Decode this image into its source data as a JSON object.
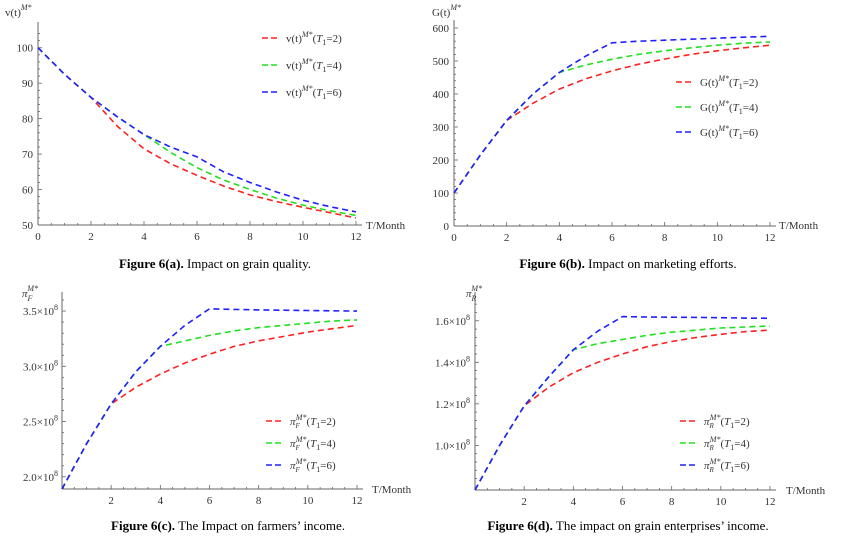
{
  "chart_data": [
    {
      "type": "line",
      "id": "a",
      "caption_bold": "Figure 6(a).",
      "caption_rest": " Impact on grain quality.",
      "ylabel": {
        "base": "v(t)",
        "sub": "",
        "sup": "M*"
      },
      "xlabel": "T/Month",
      "xlim": [
        0,
        12
      ],
      "ylim": [
        50,
        105
      ],
      "xticks": [
        {
          "v": 0,
          "l": "0"
        },
        {
          "v": 2,
          "l": "2"
        },
        {
          "v": 4,
          "l": "4"
        },
        {
          "v": 6,
          "l": "6"
        },
        {
          "v": 8,
          "l": "8"
        },
        {
          "v": 10,
          "l": "10"
        },
        {
          "v": 12,
          "l": "12"
        }
      ],
      "yticks": [
        {
          "v": 50,
          "m": "50",
          "e": ""
        },
        {
          "v": 60,
          "m": "60",
          "e": ""
        },
        {
          "v": 70,
          "m": "70",
          "e": ""
        },
        {
          "v": 80,
          "m": "80",
          "e": ""
        },
        {
          "v": 90,
          "m": "90",
          "e": ""
        },
        {
          "v": 100,
          "m": "100",
          "e": ""
        }
      ],
      "legend_position": "top-right",
      "series": [
        {
          "name": "T1=2",
          "color": "#ff2020",
          "cond": "=2)",
          "x": [
            0,
            1,
            2,
            3,
            4,
            5,
            6,
            7,
            8,
            9,
            10,
            11,
            12
          ],
          "y": [
            100,
            92.5,
            86,
            77.8,
            71.5,
            67.3,
            64,
            61,
            58.5,
            56.6,
            55,
            53.5,
            52
          ]
        },
        {
          "name": "T1=4",
          "color": "#20e020",
          "cond": "=4)",
          "x": [
            0,
            1,
            2,
            3,
            4,
            5,
            6,
            7,
            8,
            9,
            10,
            11,
            12
          ],
          "y": [
            100,
            92.5,
            86,
            80.5,
            75.5,
            70.5,
            66.2,
            62.7,
            60,
            57.6,
            55.6,
            54,
            52.7
          ]
        },
        {
          "name": "T1=6",
          "color": "#2020ff",
          "cond": "=6)",
          "x": [
            0,
            1,
            2,
            3,
            4,
            5,
            6,
            7,
            8,
            9,
            10,
            11,
            12
          ],
          "y": [
            100,
            92.5,
            86,
            80.5,
            75.5,
            72,
            69.2,
            65,
            62,
            59.3,
            57,
            55.2,
            53.7
          ]
        }
      ]
    },
    {
      "type": "line",
      "id": "b",
      "caption_bold": "Figure 6(b).",
      "caption_rest": " Impact on marketing efforts.",
      "ylabel": {
        "base": "G(t)",
        "sub": "",
        "sup": "M*"
      },
      "xlabel": "T/Month",
      "xlim": [
        0,
        12
      ],
      "ylim": [
        0,
        600
      ],
      "xticks": [
        {
          "v": 0,
          "l": "0"
        },
        {
          "v": 2,
          "l": "2"
        },
        {
          "v": 4,
          "l": "4"
        },
        {
          "v": 6,
          "l": "6"
        },
        {
          "v": 8,
          "l": "8"
        },
        {
          "v": 10,
          "l": "10"
        },
        {
          "v": 12,
          "l": "12"
        }
      ],
      "yticks": [
        {
          "v": 0,
          "m": "0",
          "e": ""
        },
        {
          "v": 100,
          "m": "100",
          "e": ""
        },
        {
          "v": 200,
          "m": "200",
          "e": ""
        },
        {
          "v": 300,
          "m": "300",
          "e": ""
        },
        {
          "v": 400,
          "m": "400",
          "e": ""
        },
        {
          "v": 500,
          "m": "500",
          "e": ""
        },
        {
          "v": 600,
          "m": "600",
          "e": ""
        }
      ],
      "legend_position": "right",
      "series": [
        {
          "name": "T1=2",
          "color": "#ff2020",
          "cond": "=2)",
          "x": [
            0,
            1,
            2,
            3,
            4,
            5,
            6,
            7,
            8,
            9,
            10,
            11,
            12
          ],
          "y": [
            100,
            215,
            320,
            372,
            415,
            446,
            470,
            490,
            506,
            520,
            531,
            540,
            548
          ]
        },
        {
          "name": "T1=4",
          "color": "#20e020",
          "cond": "=4)",
          "x": [
            0,
            1,
            2,
            3,
            4,
            5,
            6,
            7,
            8,
            9,
            10,
            11,
            12
          ],
          "y": [
            100,
            215,
            320,
            400,
            465,
            488,
            505,
            520,
            531,
            540,
            548,
            554,
            558
          ]
        },
        {
          "name": "T1=6",
          "color": "#2020ff",
          "cond": "=6)",
          "x": [
            0,
            1,
            2,
            3,
            4,
            5,
            6,
            7,
            8,
            9,
            10,
            11,
            12
          ],
          "y": [
            100,
            215,
            320,
            400,
            465,
            515,
            555,
            560,
            563,
            566,
            569,
            572,
            575
          ]
        }
      ]
    },
    {
      "type": "line",
      "id": "c",
      "caption_bold": "Figure 6(c).",
      "caption_rest": " The Impact on farmers’ income.",
      "ylabel": {
        "base": "π",
        "sub": "F",
        "sup": "M*"
      },
      "xlabel": "T/Month",
      "xlim": [
        0,
        12
      ],
      "ylim": [
        189000000,
        360000000
      ],
      "xticks": [
        {
          "v": 2,
          "l": "2"
        },
        {
          "v": 4,
          "l": "4"
        },
        {
          "v": 6,
          "l": "6"
        },
        {
          "v": 8,
          "l": "8"
        },
        {
          "v": 10,
          "l": "10"
        },
        {
          "v": 12,
          "l": "12"
        }
      ],
      "yticks": [
        {
          "v": 200000000,
          "m": "2.0×10",
          "e": "8"
        },
        {
          "v": 250000000,
          "m": "2.5×10",
          "e": "8"
        },
        {
          "v": 300000000,
          "m": "3.0×10",
          "e": "8"
        },
        {
          "v": 350000000,
          "m": "3.5×10",
          "e": "8"
        }
      ],
      "legend_position": "bottom-right",
      "series": [
        {
          "name": "T1=2",
          "color": "#ff2020",
          "cond": "=2)",
          "x": [
            0,
            1,
            2,
            3,
            4,
            5,
            6,
            7,
            8,
            9,
            10,
            11,
            12
          ],
          "y": [
            189000000,
            230000000,
            266000000,
            281000000,
            293000000,
            303000000,
            311000000,
            318000000,
            323000000,
            327000000,
            331000000,
            334000000,
            337000000
          ]
        },
        {
          "name": "T1=4",
          "color": "#20e020",
          "cond": "=4)",
          "x": [
            0,
            1,
            2,
            3,
            4,
            5,
            6,
            7,
            8,
            9,
            10,
            11,
            12
          ],
          "y": [
            189000000,
            230000000,
            266000000,
            295000000,
            318000000,
            323000000,
            328000000,
            332000000,
            335000000,
            337000000,
            339000000,
            341000000,
            342000000
          ]
        },
        {
          "name": "T1=6",
          "color": "#2020ff",
          "cond": "=6)",
          "x": [
            0,
            1,
            2,
            3,
            4,
            5,
            6,
            7,
            8,
            9,
            10,
            11,
            12
          ],
          "y": [
            189000000,
            230000000,
            266000000,
            295000000,
            318000000,
            337000000,
            352000000,
            351500000,
            351000000,
            350800000,
            350500000,
            350200000,
            350000000
          ]
        }
      ]
    },
    {
      "type": "line",
      "id": "d",
      "caption_bold": "Figure 6(d).",
      "caption_rest": " The impact on grain enterprises’ income.",
      "ylabel": {
        "base": "π",
        "sub": "R",
        "sup": "M*"
      },
      "xlabel": "T/Month",
      "xlim": [
        0,
        12
      ],
      "ylim": [
        78500000,
        170000000
      ],
      "xticks": [
        {
          "v": 2,
          "l": "2"
        },
        {
          "v": 4,
          "l": "4"
        },
        {
          "v": 6,
          "l": "6"
        },
        {
          "v": 8,
          "l": "8"
        },
        {
          "v": 10,
          "l": "10"
        },
        {
          "v": 12,
          "l": "12"
        }
      ],
      "yticks": [
        {
          "v": 100000000,
          "m": "1.0×10",
          "e": "8"
        },
        {
          "v": 120000000,
          "m": "1.2×10",
          "e": "8"
        },
        {
          "v": 140000000,
          "m": "1.4×10",
          "e": "8"
        },
        {
          "v": 160000000,
          "m": "1.6×10",
          "e": "8"
        }
      ],
      "legend_position": "bottom-right",
      "series": [
        {
          "name": "T1=2",
          "color": "#ff2020",
          "cond": "=2)",
          "x": [
            0,
            1,
            2,
            3,
            4,
            5,
            6,
            7,
            8,
            9,
            10,
            11,
            12
          ],
          "y": [
            78500000,
            100000000,
            119000000,
            128000000,
            135000000,
            140000000,
            144000000,
            147500000,
            150000000,
            152000000,
            153500000,
            154800000,
            155500000
          ]
        },
        {
          "name": "T1=4",
          "color": "#20e020",
          "cond": "=4)",
          "x": [
            0,
            1,
            2,
            3,
            4,
            5,
            6,
            7,
            8,
            9,
            10,
            11,
            12
          ],
          "y": [
            78500000,
            100000000,
            119000000,
            133000000,
            146000000,
            149000000,
            151000000,
            153000000,
            154500000,
            155500000,
            156500000,
            157000000,
            157500000
          ]
        },
        {
          "name": "T1=6",
          "color": "#2020ff",
          "cond": "=6)",
          "x": [
            0,
            1,
            2,
            3,
            4,
            5,
            6,
            7,
            8,
            9,
            10,
            11,
            12
          ],
          "y": [
            78500000,
            100000000,
            119000000,
            133000000,
            146000000,
            155000000,
            162000000,
            161800000,
            161700000,
            161600000,
            161500000,
            161300000,
            161200000
          ]
        }
      ]
    }
  ]
}
